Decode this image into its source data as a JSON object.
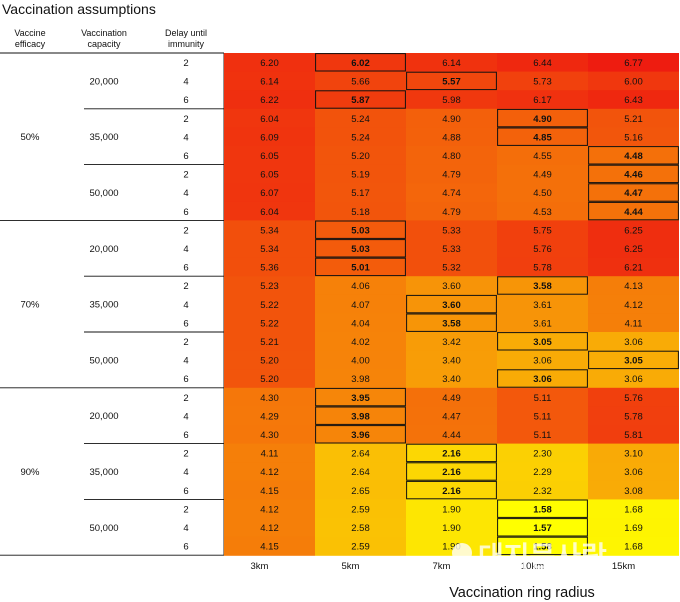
{
  "chart_data": {
    "type": "heatmap",
    "title": "Vaccination assumptions",
    "xlabel": "Vaccination ring radius",
    "row_headers": [
      "Vaccine efficacy",
      "Vaccination capacity",
      "Delay until immunity"
    ],
    "columns": [
      "3km",
      "5km",
      "7km",
      "10km",
      "15km"
    ],
    "efficacy_levels": [
      "50%",
      "70%",
      "90%"
    ],
    "capacity_levels": [
      "20,000",
      "35,000",
      "50,000"
    ],
    "delay_levels": [
      "2",
      "4",
      "6"
    ],
    "rows": [
      {
        "efficacy": "50%",
        "capacity": "20,000",
        "delay": "2",
        "values": [
          "6.20",
          "6.02",
          "6.14",
          "6.44",
          "6.77"
        ],
        "bold": [
          1
        ]
      },
      {
        "efficacy": "50%",
        "capacity": "20,000",
        "delay": "4",
        "values": [
          "6.14",
          "5.66",
          "5.57",
          "5.73",
          "6.00"
        ],
        "bold": [
          2
        ]
      },
      {
        "efficacy": "50%",
        "capacity": "20,000",
        "delay": "6",
        "values": [
          "6.22",
          "5.87",
          "5.98",
          "6.17",
          "6.43"
        ],
        "bold": [
          1
        ]
      },
      {
        "efficacy": "50%",
        "capacity": "35,000",
        "delay": "2",
        "values": [
          "6.04",
          "5.24",
          "4.90",
          "4.90",
          "5.21"
        ],
        "bold": [
          3
        ]
      },
      {
        "efficacy": "50%",
        "capacity": "35,000",
        "delay": "4",
        "values": [
          "6.09",
          "5.24",
          "4.88",
          "4.85",
          "5.16"
        ],
        "bold": [
          3
        ]
      },
      {
        "efficacy": "50%",
        "capacity": "35,000",
        "delay": "6",
        "values": [
          "6.05",
          "5.20",
          "4.80",
          "4.55",
          "4.48"
        ],
        "bold": [
          4
        ]
      },
      {
        "efficacy": "50%",
        "capacity": "50,000",
        "delay": "2",
        "values": [
          "6.05",
          "5.19",
          "4.79",
          "4.49",
          "4.46"
        ],
        "bold": [
          4
        ]
      },
      {
        "efficacy": "50%",
        "capacity": "50,000",
        "delay": "4",
        "values": [
          "6.07",
          "5.17",
          "4.74",
          "4.50",
          "4.47"
        ],
        "bold": [
          4
        ]
      },
      {
        "efficacy": "50%",
        "capacity": "50,000",
        "delay": "6",
        "values": [
          "6.04",
          "5.18",
          "4.79",
          "4.53",
          "4.44"
        ],
        "bold": [
          4
        ]
      },
      {
        "efficacy": "70%",
        "capacity": "20,000",
        "delay": "2",
        "values": [
          "5.34",
          "5.03",
          "5.33",
          "5.75",
          "6.25"
        ],
        "bold": [
          1
        ]
      },
      {
        "efficacy": "70%",
        "capacity": "20,000",
        "delay": "4",
        "values": [
          "5.34",
          "5.03",
          "5.33",
          "5.76",
          "6.25"
        ],
        "bold": [
          1
        ]
      },
      {
        "efficacy": "70%",
        "capacity": "20,000",
        "delay": "6",
        "values": [
          "5.36",
          "5.01",
          "5.32",
          "5.78",
          "6.21"
        ],
        "bold": [
          1
        ]
      },
      {
        "efficacy": "70%",
        "capacity": "35,000",
        "delay": "2",
        "values": [
          "5.23",
          "4.06",
          "3.60",
          "3.58",
          "4.13"
        ],
        "bold": [
          3
        ]
      },
      {
        "efficacy": "70%",
        "capacity": "35,000",
        "delay": "4",
        "values": [
          "5.22",
          "4.07",
          "3.60",
          "3.61",
          "4.12"
        ],
        "bold": [
          2
        ]
      },
      {
        "efficacy": "70%",
        "capacity": "35,000",
        "delay": "6",
        "values": [
          "5.22",
          "4.04",
          "3.58",
          "3.61",
          "4.11"
        ],
        "bold": [
          2
        ]
      },
      {
        "efficacy": "70%",
        "capacity": "50,000",
        "delay": "2",
        "values": [
          "5.21",
          "4.02",
          "3.42",
          "3.05",
          "3.06"
        ],
        "bold": [
          3
        ]
      },
      {
        "efficacy": "70%",
        "capacity": "50,000",
        "delay": "4",
        "values": [
          "5.20",
          "4.00",
          "3.40",
          "3.06",
          "3.05"
        ],
        "bold": [
          4
        ]
      },
      {
        "efficacy": "70%",
        "capacity": "50,000",
        "delay": "6",
        "values": [
          "5.20",
          "3.98",
          "3.40",
          "3.06",
          "3.06"
        ],
        "bold": [
          3
        ]
      },
      {
        "efficacy": "90%",
        "capacity": "20,000",
        "delay": "2",
        "values": [
          "4.30",
          "3.95",
          "4.49",
          "5.11",
          "5.76"
        ],
        "bold": [
          1
        ]
      },
      {
        "efficacy": "90%",
        "capacity": "20,000",
        "delay": "4",
        "values": [
          "4.29",
          "3.98",
          "4.47",
          "5.11",
          "5.78"
        ],
        "bold": [
          1
        ]
      },
      {
        "efficacy": "90%",
        "capacity": "20,000",
        "delay": "6",
        "values": [
          "4.30",
          "3.96",
          "4.44",
          "5.11",
          "5.81"
        ],
        "bold": [
          1
        ]
      },
      {
        "efficacy": "90%",
        "capacity": "35,000",
        "delay": "2",
        "values": [
          "4.11",
          "2.64",
          "2.16",
          "2.30",
          "3.10"
        ],
        "bold": [
          2
        ]
      },
      {
        "efficacy": "90%",
        "capacity": "35,000",
        "delay": "4",
        "values": [
          "4.12",
          "2.64",
          "2.16",
          "2.29",
          "3.06"
        ],
        "bold": [
          2
        ]
      },
      {
        "efficacy": "90%",
        "capacity": "35,000",
        "delay": "6",
        "values": [
          "4.15",
          "2.65",
          "2.16",
          "2.32",
          "3.08"
        ],
        "bold": [
          2
        ]
      },
      {
        "efficacy": "90%",
        "capacity": "50,000",
        "delay": "2",
        "values": [
          "4.12",
          "2.59",
          "1.90",
          "1.58",
          "1.68"
        ],
        "bold": [
          3
        ]
      },
      {
        "efficacy": "90%",
        "capacity": "50,000",
        "delay": "4",
        "values": [
          "4.12",
          "2.58",
          "1.90",
          "1.57",
          "1.69"
        ],
        "bold": [
          3
        ]
      },
      {
        "efficacy": "90%",
        "capacity": "50,000",
        "delay": "6",
        "values": [
          "4.15",
          "2.59",
          "1.90",
          "1.58",
          "1.68"
        ],
        "bold": [
          3
        ]
      }
    ],
    "color_scale": {
      "low": "#ffff00",
      "high": "#ee1c10",
      "min_value": 1.57,
      "max_value": 6.77
    },
    "watermark": "대지문사람"
  }
}
